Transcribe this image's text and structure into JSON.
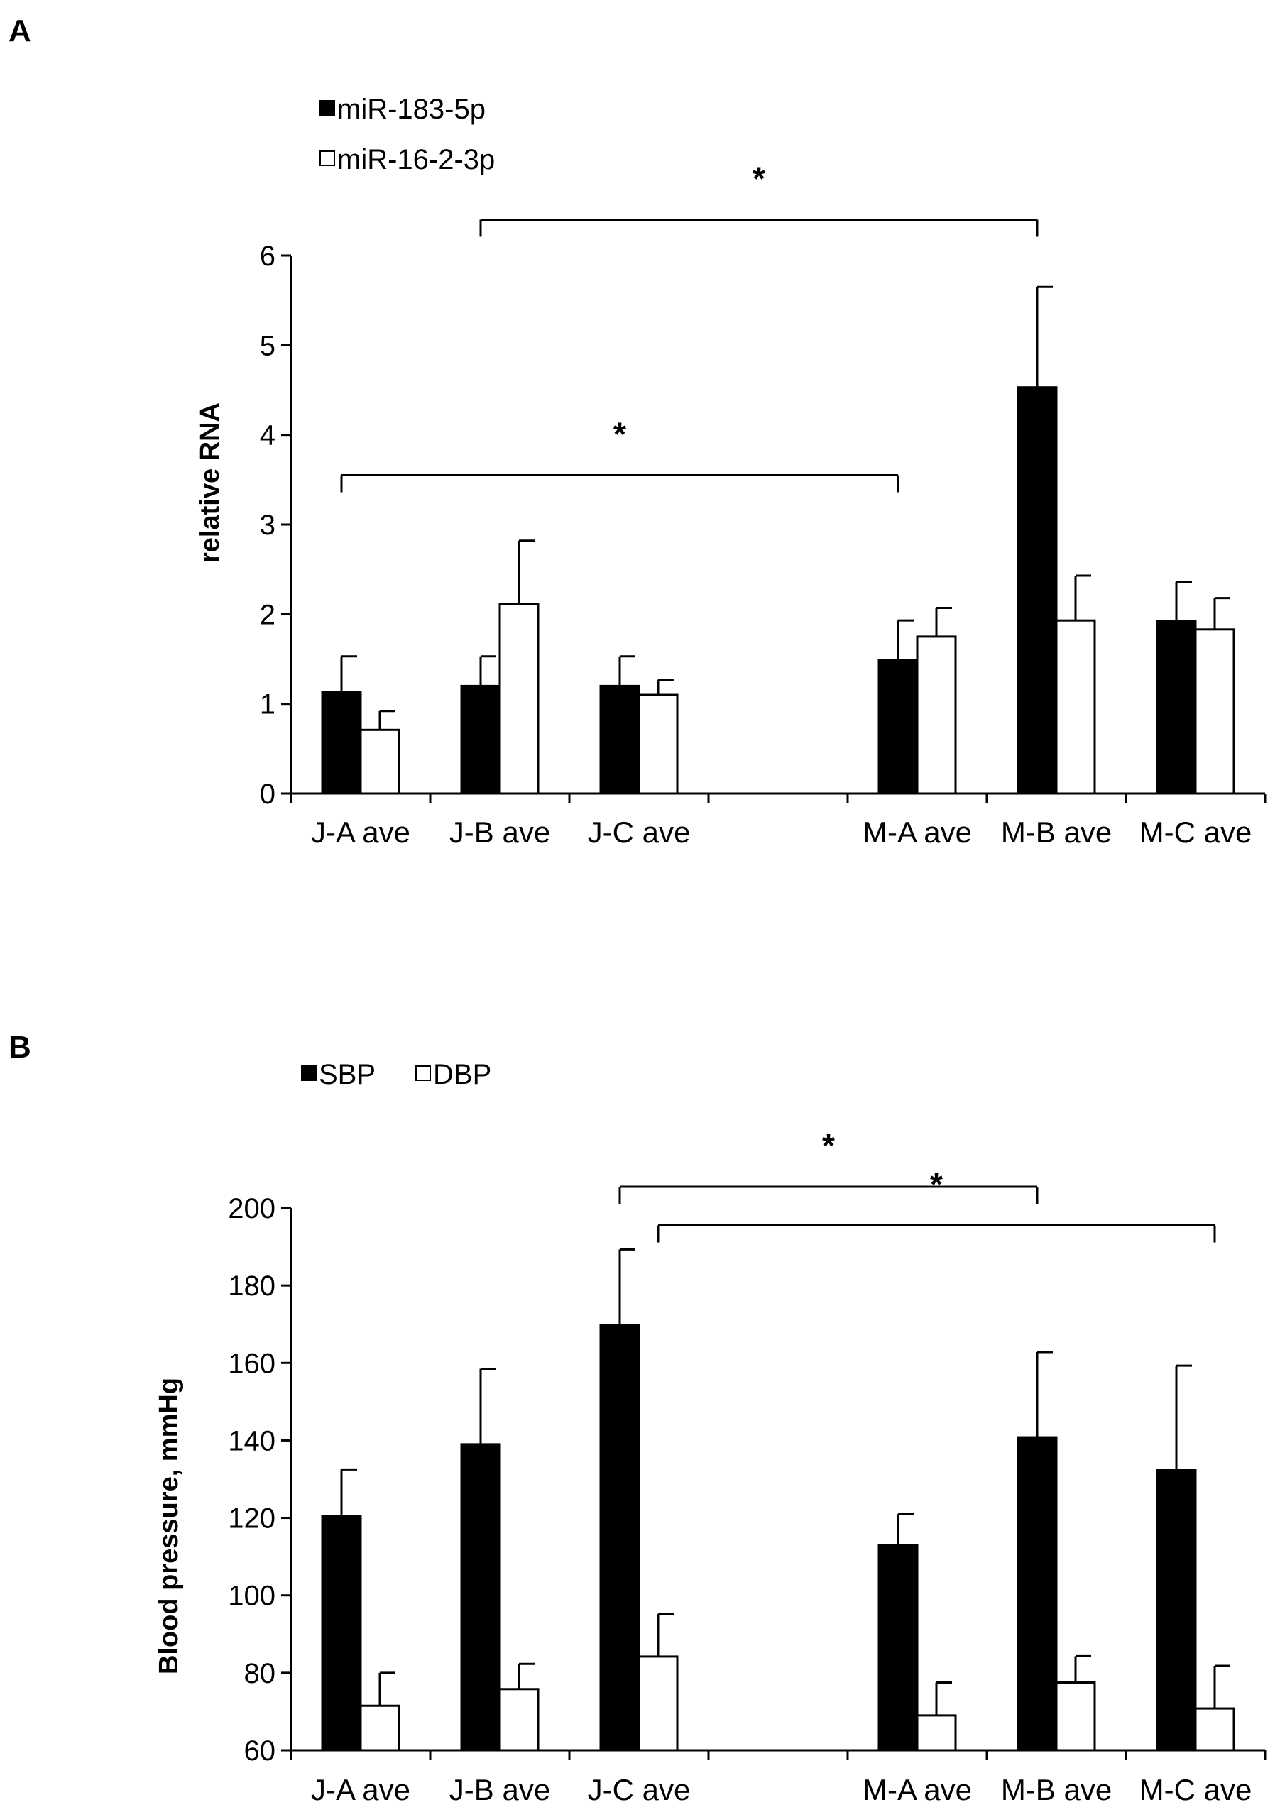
{
  "chart_data": [
    {
      "type": "bar",
      "panel_label": "A",
      "title": "",
      "xlabel": "",
      "ylabel": "relative RNA",
      "ylim": [
        0,
        6
      ],
      "yticks": [
        0,
        1,
        2,
        3,
        4,
        5,
        6
      ],
      "categories": [
        "J-A ave",
        "J-B ave",
        "J-C ave",
        "",
        "M-A ave",
        "M-B ave",
        "M-C ave"
      ],
      "series": [
        {
          "name": "miR-183-5p",
          "fill": "#000000",
          "values": [
            1.13,
            1.2,
            1.2,
            null,
            1.49,
            4.53,
            1.92
          ],
          "errors": [
            0.4,
            0.33,
            0.33,
            null,
            0.44,
            1.12,
            0.44
          ]
        },
        {
          "name": "miR-16-2-3p",
          "fill": "#ffffff",
          "values": [
            0.71,
            2.11,
            1.1,
            null,
            1.75,
            1.93,
            1.83
          ],
          "errors": [
            0.21,
            0.71,
            0.17,
            null,
            0.32,
            0.5,
            0.35
          ]
        }
      ],
      "legend_position": "top-left",
      "significance": [
        {
          "label": "*",
          "from": "J-B ave",
          "to": "M-B ave",
          "y": 6.4
        },
        {
          "label": "*",
          "from": "J-A ave",
          "to": "M-A ave",
          "y": 3.55
        }
      ]
    },
    {
      "type": "bar",
      "panel_label": "B",
      "title": "",
      "xlabel": "",
      "ylabel": "Blood pressure, mmHg",
      "ylim": [
        60,
        200
      ],
      "yticks": [
        60,
        80,
        100,
        120,
        140,
        160,
        180,
        200
      ],
      "categories": [
        "J-A ave",
        "J-B ave",
        "J-C ave",
        "",
        "M-A ave",
        "M-B ave",
        "M-C ave"
      ],
      "series": [
        {
          "name": "SBP",
          "fill": "#000000",
          "values": [
            120.5,
            139,
            169.8,
            null,
            113,
            140.8,
            132.3
          ],
          "errors": [
            12,
            19.5,
            19.5,
            null,
            8,
            22,
            27
          ]
        },
        {
          "name": "DBP",
          "fill": "#ffffff",
          "values": [
            71.5,
            75.8,
            84.2,
            null,
            69,
            77.5,
            70.8
          ],
          "errors": [
            8.5,
            6.5,
            11,
            null,
            8.5,
            6.8,
            11
          ]
        }
      ],
      "legend_position": "top-left",
      "significance": [
        {
          "label": "*",
          "from": "J-C ave",
          "to": "M-B ave",
          "y": 205.5
        },
        {
          "label": "*",
          "from": "J-C ave",
          "to": "M-C ave",
          "y": 195.5
        }
      ]
    }
  ]
}
